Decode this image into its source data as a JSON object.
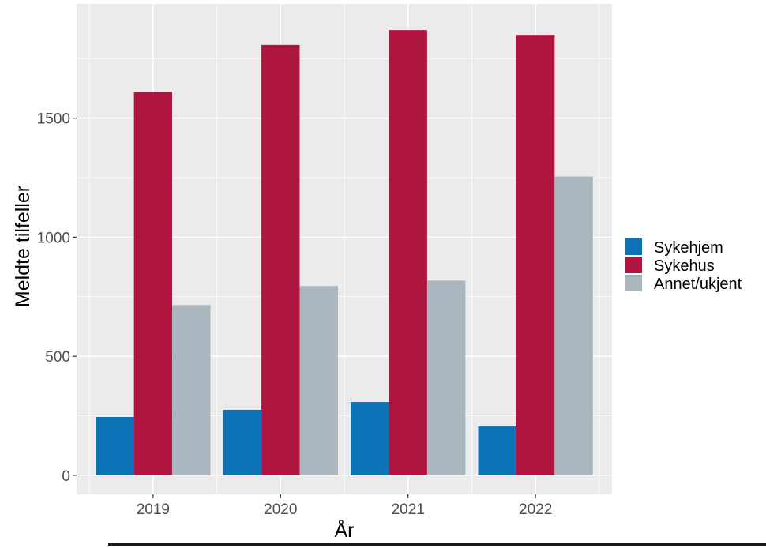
{
  "chart_data": {
    "type": "bar",
    "categories": [
      "2019",
      "2020",
      "2021",
      "2022"
    ],
    "series": [
      {
        "name": "Sykehjem",
        "color": "#0b72b5",
        "values": [
          245,
          275,
          308,
          205
        ]
      },
      {
        "name": "Sykehus",
        "color": "#b0153f",
        "values": [
          1610,
          1808,
          1870,
          1850
        ]
      },
      {
        "name": "Annet/ukjent",
        "color": "#aab7bf",
        "values": [
          715,
          795,
          818,
          1255
        ]
      }
    ],
    "title": "",
    "xlabel": "År",
    "ylabel": "Meldte tilfeller",
    "ylim": [
      -80,
      1980
    ],
    "yticks": [
      0,
      500,
      1000,
      1500
    ],
    "grid": true,
    "panel_color": "#ebebeb",
    "legend_position": "right"
  }
}
